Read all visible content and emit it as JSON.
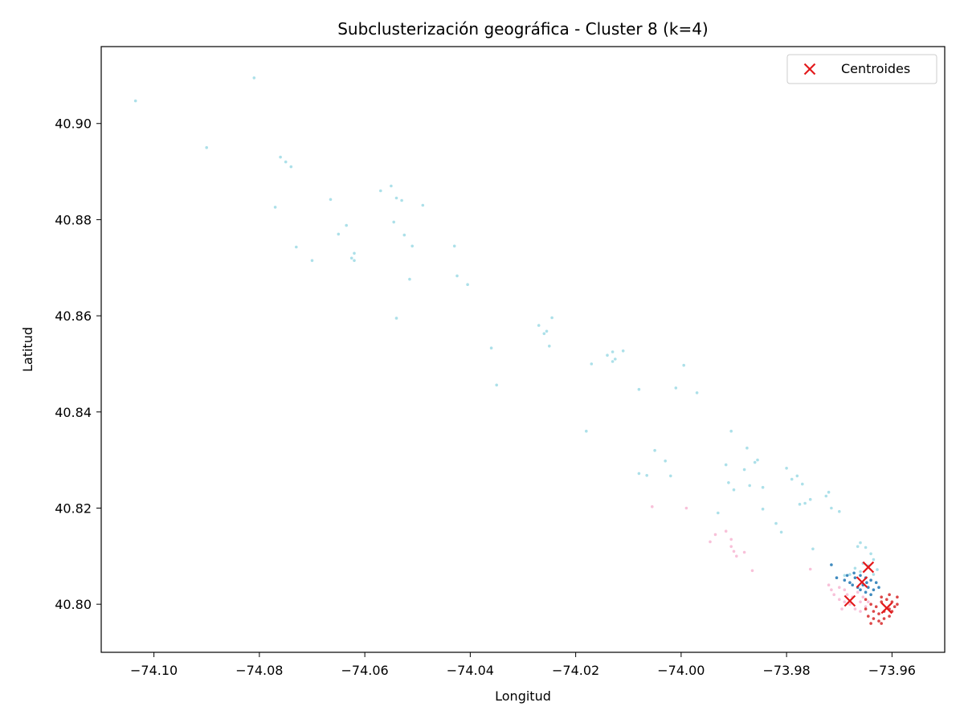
{
  "chart_data": {
    "type": "scatter",
    "title": "Subclusterización geográfica - Cluster 8 (k=4)",
    "xlabel": "Longitud",
    "ylabel": "Latitud",
    "xlim": [
      -74.11,
      -73.95
    ],
    "ylim": [
      40.79,
      40.916
    ],
    "xticks": [
      -74.1,
      -74.08,
      -74.06,
      -74.04,
      -74.02,
      -74.0,
      -73.98,
      -73.96
    ],
    "xtick_labels": [
      "−74.10",
      "−74.08",
      "−74.06",
      "−74.04",
      "−74.02",
      "−74.00",
      "−73.98",
      "−73.96"
    ],
    "yticks": [
      40.8,
      40.82,
      40.84,
      40.86,
      40.88,
      40.9
    ],
    "ytick_labels": [
      "40.80",
      "40.82",
      "40.84",
      "40.86",
      "40.88",
      "40.90"
    ],
    "grid": false,
    "legend": {
      "placement": "top-right",
      "entries": [
        {
          "label": "Centroides",
          "marker": "x",
          "color": "#e31a1c"
        }
      ]
    },
    "series": [
      {
        "color": "#9edae5",
        "points": [
          [
            -74.1035,
            40.9047
          ],
          [
            -74.081,
            40.9095
          ],
          [
            -74.09,
            40.895
          ],
          [
            -74.076,
            40.893
          ],
          [
            -74.075,
            40.892
          ],
          [
            -74.074,
            40.891
          ],
          [
            -74.077,
            40.8826
          ],
          [
            -74.073,
            40.8743
          ],
          [
            -74.07,
            40.8715
          ],
          [
            -74.0665,
            40.8842
          ],
          [
            -74.065,
            40.877
          ],
          [
            -74.0635,
            40.8788
          ],
          [
            -74.0625,
            40.872
          ],
          [
            -74.062,
            40.8715
          ],
          [
            -74.062,
            40.873
          ],
          [
            -74.057,
            40.886
          ],
          [
            -74.055,
            40.887
          ],
          [
            -74.0545,
            40.8795
          ],
          [
            -74.054,
            40.8845
          ],
          [
            -74.053,
            40.884
          ],
          [
            -74.0525,
            40.8768
          ],
          [
            -74.051,
            40.8745
          ],
          [
            -74.0515,
            40.8676
          ],
          [
            -74.049,
            40.883
          ],
          [
            -74.054,
            40.8595
          ],
          [
            -74.043,
            40.8745
          ],
          [
            -74.0425,
            40.8683
          ],
          [
            -74.0405,
            40.8665
          ],
          [
            -74.036,
            40.8533
          ],
          [
            -74.035,
            40.8456
          ],
          [
            -74.027,
            40.858
          ],
          [
            -74.026,
            40.8563
          ],
          [
            -74.0255,
            40.8568
          ],
          [
            -74.0245,
            40.8596
          ],
          [
            -74.025,
            40.8537
          ],
          [
            -74.018,
            40.836
          ],
          [
            -74.017,
            40.85
          ],
          [
            -74.014,
            40.8518
          ],
          [
            -74.013,
            40.8505
          ],
          [
            -74.0125,
            40.851
          ],
          [
            -74.013,
            40.8525
          ],
          [
            -74.011,
            40.8527
          ],
          [
            -74.008,
            40.8447
          ],
          [
            -74.008,
            40.8272
          ],
          [
            -74.0065,
            40.8268
          ],
          [
            -74.005,
            40.832
          ],
          [
            -74.003,
            40.8298
          ],
          [
            -74.002,
            40.8267
          ],
          [
            -74.001,
            40.845
          ],
          [
            -73.9995,
            40.8497
          ],
          [
            -73.997,
            40.844
          ],
          [
            -73.993,
            40.819
          ],
          [
            -73.9915,
            40.829
          ],
          [
            -73.991,
            40.8253
          ],
          [
            -73.9905,
            40.836
          ],
          [
            -73.99,
            40.8238
          ],
          [
            -73.988,
            40.828
          ],
          [
            -73.9875,
            40.8325
          ],
          [
            -73.987,
            40.8247
          ],
          [
            -73.986,
            40.8295
          ],
          [
            -73.9855,
            40.83
          ],
          [
            -73.9845,
            40.8243
          ],
          [
            -73.9845,
            40.8198
          ],
          [
            -73.982,
            40.8168
          ],
          [
            -73.981,
            40.815
          ],
          [
            -73.98,
            40.8283
          ],
          [
            -73.979,
            40.826
          ],
          [
            -73.978,
            40.8267
          ],
          [
            -73.977,
            40.825
          ],
          [
            -73.9775,
            40.8208
          ],
          [
            -73.9765,
            40.821
          ],
          [
            -73.9755,
            40.8218
          ],
          [
            -73.975,
            40.8115
          ],
          [
            -73.9725,
            40.8225
          ],
          [
            -73.972,
            40.8233
          ],
          [
            -73.9715,
            40.82
          ],
          [
            -73.97,
            40.8193
          ],
          [
            -73.969,
            40.806
          ],
          [
            -73.968,
            40.8062
          ],
          [
            -73.9665,
            40.812
          ],
          [
            -73.966,
            40.8128
          ],
          [
            -73.965,
            40.8118
          ],
          [
            -73.964,
            40.8105
          ],
          [
            -73.9635,
            40.8093
          ],
          [
            -73.9655,
            40.8085
          ],
          [
            -73.967,
            40.8075
          ],
          [
            -73.9645,
            40.808
          ],
          [
            -73.9628,
            40.8072
          ],
          [
            -73.966,
            40.8068
          ],
          [
            -73.9635,
            40.8062
          ]
        ]
      },
      {
        "color": "#f7b6d2",
        "points": [
          [
            -74.0055,
            40.8203
          ],
          [
            -73.999,
            40.82
          ],
          [
            -73.9935,
            40.8145
          ],
          [
            -73.9915,
            40.8152
          ],
          [
            -73.9905,
            40.8135
          ],
          [
            -73.9945,
            40.813
          ],
          [
            -73.9905,
            40.812
          ],
          [
            -73.99,
            40.811
          ],
          [
            -73.9895,
            40.81
          ],
          [
            -73.988,
            40.8108
          ],
          [
            -73.9865,
            40.807
          ],
          [
            -73.9755,
            40.8073
          ],
          [
            -73.972,
            40.804
          ],
          [
            -73.971,
            40.802
          ],
          [
            -73.9715,
            40.803
          ],
          [
            -73.97,
            40.8035
          ],
          [
            -73.969,
            40.803
          ],
          [
            -73.9685,
            40.802
          ],
          [
            -73.97,
            40.801
          ],
          [
            -73.969,
            40.8005
          ],
          [
            -73.968,
            40.8
          ],
          [
            -73.967,
            40.799
          ],
          [
            -73.966,
            40.8005
          ],
          [
            -73.965,
            40.7995
          ],
          [
            -73.9675,
            40.8015
          ],
          [
            -73.9665,
            40.8025
          ],
          [
            -73.9655,
            40.8015
          ],
          [
            -73.9645,
            40.8005
          ],
          [
            -73.9695,
            40.799
          ],
          [
            -73.966,
            40.7985
          ]
        ]
      },
      {
        "color": "#1f77b4",
        "points": [
          [
            -73.9715,
            40.8082
          ],
          [
            -73.9705,
            40.8055
          ],
          [
            -73.969,
            40.805
          ],
          [
            -73.968,
            40.8045
          ],
          [
            -73.967,
            40.8055
          ],
          [
            -73.966,
            40.806
          ],
          [
            -73.965,
            40.8055
          ],
          [
            -73.964,
            40.805
          ],
          [
            -73.963,
            40.8045
          ],
          [
            -73.9675,
            40.804
          ],
          [
            -73.9665,
            40.8035
          ],
          [
            -73.9655,
            40.804
          ],
          [
            -73.9645,
            40.8035
          ],
          [
            -73.9635,
            40.803
          ],
          [
            -73.9625,
            40.8035
          ],
          [
            -73.966,
            40.803
          ],
          [
            -73.965,
            40.8025
          ],
          [
            -73.964,
            40.802
          ],
          [
            -73.9685,
            40.806
          ],
          [
            -73.9672,
            40.8065
          ],
          [
            -73.9648,
            40.8045
          ]
        ]
      },
      {
        "color": "#d62728",
        "points": [
          [
            -73.965,
            40.801
          ],
          [
            -73.964,
            40.8
          ],
          [
            -73.963,
            40.7995
          ],
          [
            -73.962,
            40.8005
          ],
          [
            -73.961,
            40.801
          ],
          [
            -73.96,
            40.8005
          ],
          [
            -73.959,
            40.8
          ],
          [
            -73.9635,
            40.7985
          ],
          [
            -73.9625,
            40.798
          ],
          [
            -73.9615,
            40.7985
          ],
          [
            -73.9605,
            40.799
          ],
          [
            -73.9595,
            40.7995
          ],
          [
            -73.9645,
            40.7975
          ],
          [
            -73.9635,
            40.797
          ],
          [
            -73.9625,
            40.7965
          ],
          [
            -73.9615,
            40.797
          ],
          [
            -73.9605,
            40.7975
          ],
          [
            -73.962,
            40.8015
          ],
          [
            -73.9605,
            40.802
          ],
          [
            -73.964,
            40.796
          ],
          [
            -73.962,
            40.796
          ],
          [
            -73.965,
            40.799
          ],
          [
            -73.959,
            40.8015
          ],
          [
            -73.96,
            40.7985
          ]
        ]
      }
    ],
    "centroids": [
      {
        "x": -73.9645,
        "y": 40.8077
      },
      {
        "x": -73.9657,
        "y": 40.8046
      },
      {
        "x": -73.968,
        "y": 40.8007
      },
      {
        "x": -73.961,
        "y": 40.7992
      }
    ],
    "centroid_color": "#e31a1c"
  }
}
